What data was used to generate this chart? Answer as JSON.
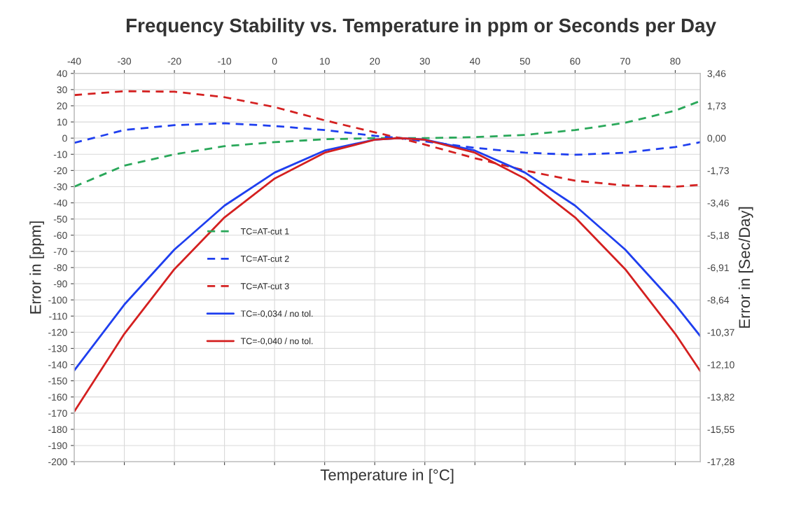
{
  "chart_data": {
    "type": "line",
    "title": "Frequency Stability vs. Temperature in ppm or Seconds per Day",
    "xlabel": "Temperature in [°C]",
    "ylabel": "Error in [ppm]",
    "y2label": "Error in [Sec/Day]",
    "x": [
      -40,
      -30,
      -20,
      -10,
      0,
      10,
      20,
      25,
      30,
      40,
      50,
      60,
      70,
      80,
      85
    ],
    "xlim": [
      -40,
      85
    ],
    "xticks": [
      -40,
      -30,
      -20,
      -10,
      0,
      10,
      20,
      30,
      40,
      50,
      60,
      70,
      80
    ],
    "ylim": [
      -200,
      40
    ],
    "yticks": [
      -200,
      -190,
      -180,
      -170,
      -160,
      -150,
      -140,
      -130,
      -120,
      -110,
      -100,
      -90,
      -80,
      -70,
      -60,
      -50,
      -40,
      -30,
      -20,
      -10,
      0,
      10,
      20,
      30,
      40
    ],
    "y2lim": [
      -17.28,
      3.456
    ],
    "y2ticks": [
      {
        "value": -17.28,
        "label": "-17,28"
      },
      {
        "value": -15.552,
        "label": "-15,55"
      },
      {
        "value": -13.824,
        "label": "-13,82"
      },
      {
        "value": -12.096,
        "label": "-12,10"
      },
      {
        "value": -10.368,
        "label": "-10,37"
      },
      {
        "value": -8.64,
        "label": "-8,64"
      },
      {
        "value": -6.912,
        "label": "-6,91"
      },
      {
        "value": -5.184,
        "label": "-5,18"
      },
      {
        "value": -3.456,
        "label": "-3,46"
      },
      {
        "value": -1.728,
        "label": "-1,73"
      },
      {
        "value": 0,
        "label": "0,00"
      },
      {
        "value": 1.728,
        "label": "1,73"
      },
      {
        "value": 3.456,
        "label": "3,46"
      }
    ],
    "grid": true,
    "legend": "center left",
    "marker": "none",
    "series": [
      {
        "name": "TC=AT-cut 1",
        "color": "#2aa85a",
        "line_style": "dashed",
        "values": [
          -30,
          -17,
          -10,
          -5,
          -2.5,
          -0.7,
          0,
          0,
          0,
          0.6,
          2,
          5,
          9.5,
          17,
          23
        ]
      },
      {
        "name": "TC=AT-cut 2",
        "color": "#1f3fef",
        "line_style": "dashed",
        "values": [
          -2.9,
          5,
          8,
          9.2,
          7.5,
          5,
          1.4,
          0,
          -2,
          -6,
          -9,
          -10.3,
          -9,
          -5.5,
          -2.5
        ]
      },
      {
        "name": "TC=AT-cut 3",
        "color": "#d42020",
        "line_style": "dashed",
        "values": [
          26.6,
          29,
          28.7,
          25.3,
          19.2,
          11,
          3.6,
          0,
          -4,
          -12.4,
          -20,
          -26.3,
          -29.3,
          -30,
          -28.9
        ]
      },
      {
        "name": "TC=-0,034 / no tol.",
        "color": "#1f3fef",
        "line_style": "solid",
        "values": [
          -143.6,
          -102.9,
          -68.9,
          -41.7,
          -21.3,
          -7.7,
          -0.9,
          0,
          -0.9,
          -7.7,
          -21.3,
          -41.7,
          -68.9,
          -102.9,
          -122.4
        ]
      },
      {
        "name": "TC=-0,040 / no tol.",
        "color": "#d42020",
        "line_style": "solid",
        "values": [
          -169,
          -121,
          -81,
          -49,
          -25,
          -9,
          -1,
          0,
          -1,
          -9,
          -25,
          -49,
          -81,
          -121,
          -144
        ]
      }
    ]
  }
}
